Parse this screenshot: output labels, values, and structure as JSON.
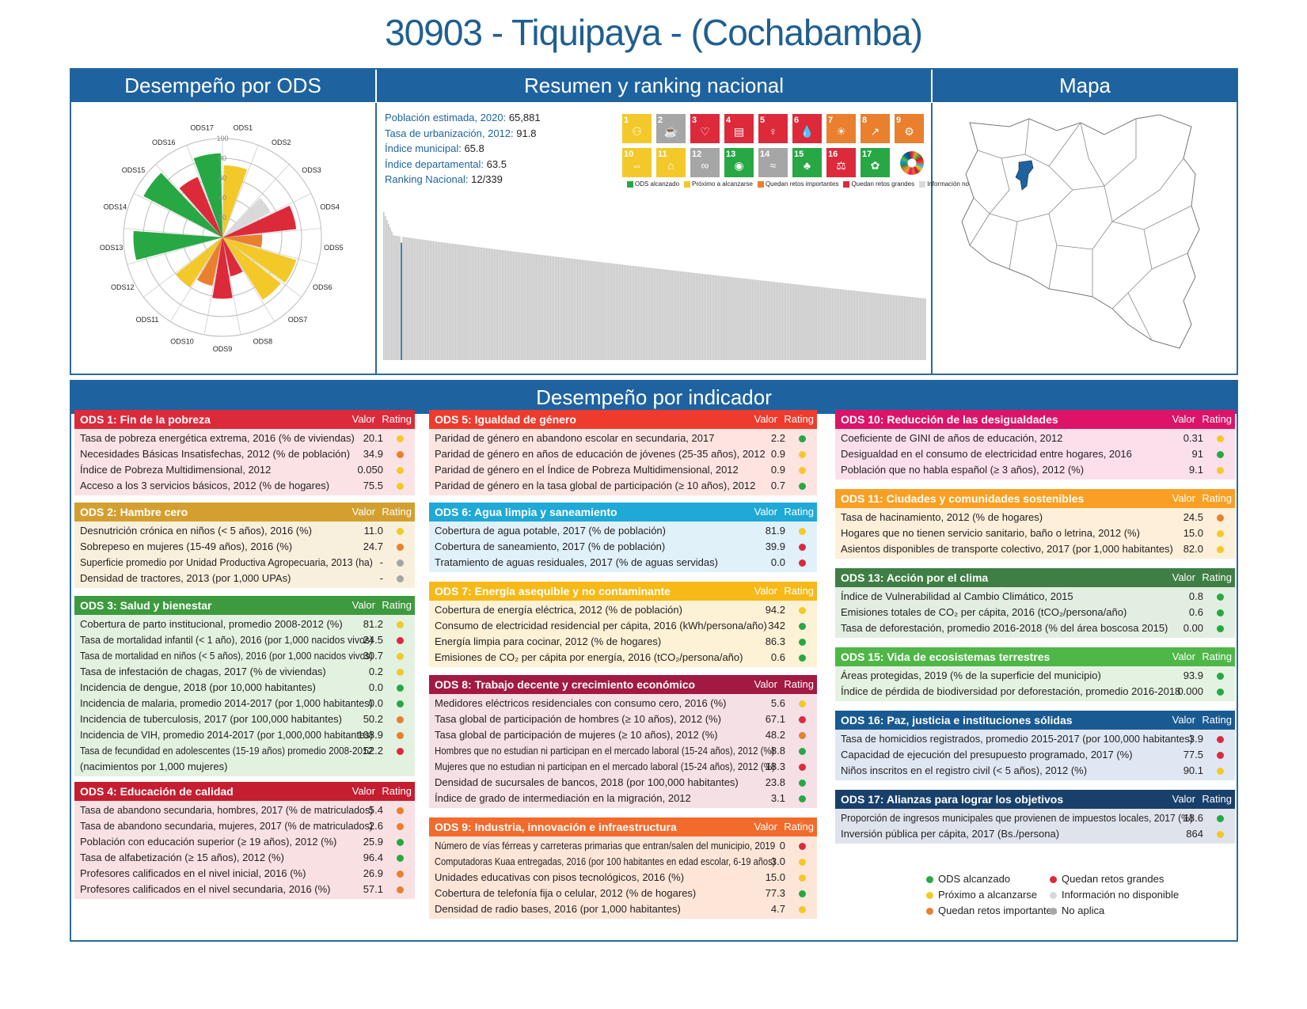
{
  "title": "30903 - Tiquipaya - (Cochabamba)",
  "headers": {
    "ods": "Desempeño por ODS",
    "resumen": "Resumen y ranking nacional",
    "mapa": "Mapa",
    "indicador": "Desempeño por indicador"
  },
  "summary": [
    {
      "label": "Población estimada, 2020:",
      "value": "65,881"
    },
    {
      "label": "Tasa de urbanización, 2012:",
      "value": "91.8"
    },
    {
      "label": "Índice municipal:",
      "value": "65.8"
    },
    {
      "label": "Índice departamental:",
      "value": "63.5"
    },
    {
      "label": "Ranking Nacional:",
      "value": "12/339"
    }
  ],
  "colors": {
    "green": "#27a844",
    "yellow": "#f3c92a",
    "orange": "#ea7f2d",
    "red": "#dc2a3b",
    "lightgray": "#d9d9d9",
    "gray": "#a6a6a6",
    "blue": "#1e63a0"
  },
  "sdg_tiles": [
    {
      "n": "1",
      "color": "#e5243b"
    },
    {
      "n": "2",
      "color": "#dda63a"
    },
    {
      "n": "3",
      "color": "#4c9f38"
    },
    {
      "n": "4",
      "color": "#c5192d"
    },
    {
      "n": "5",
      "color": "#ff3a21"
    },
    {
      "n": "6",
      "color": "#26bde2"
    },
    {
      "n": "7",
      "color": "#fcc30b"
    },
    {
      "n": "8",
      "color": "#a21942"
    },
    {
      "n": "9",
      "color": "#fd6925"
    },
    {
      "n": "10",
      "color": "#dd1367"
    },
    {
      "n": "11",
      "color": "#fd9d24"
    },
    {
      "n": "12",
      "color": "#bf8b2e"
    },
    {
      "n": "13",
      "color": "#3f7e44"
    },
    {
      "n": "14",
      "color": "#0a97d9"
    },
    {
      "n": "15",
      "color": "#56c02b"
    },
    {
      "n": "16",
      "color": "#00689d"
    },
    {
      "n": "17",
      "color": "#19486a"
    }
  ],
  "sdg_tile_status": [
    "yellow",
    "gray",
    "red",
    "red",
    "red",
    "red",
    "orange",
    "orange",
    "orange",
    "yellow",
    "yellow",
    "gray",
    "green",
    "gray",
    "green",
    "red",
    "green"
  ],
  "sdg_legend": [
    {
      "label": "ODS alcanzado",
      "color": "green"
    },
    {
      "label": "Próximo a alcanzarse",
      "color": "yellow"
    },
    {
      "label": "Quedan retos importantes",
      "color": "orange"
    },
    {
      "label": "Quedan retos grandes",
      "color": "red"
    },
    {
      "label": "Información no disponible",
      "color": "lightgray"
    },
    {
      "label": "No aplica",
      "color": "gray"
    }
  ],
  "chart_data": [
    {
      "type": "polar-bar",
      "categories": [
        "ODS1",
        "ODS2",
        "ODS3",
        "ODS4",
        "ODS5",
        "ODS6",
        "ODS7",
        "ODS8",
        "ODS9",
        "ODS10",
        "ODS11",
        "ODS12",
        "ODS13",
        "ODS14",
        "ODS15",
        "ODS16",
        "ODS17"
      ],
      "values": [
        73,
        0,
        55,
        75,
        40,
        78,
        75,
        40,
        62,
        50,
        60,
        0,
        90,
        0,
        90,
        66,
        85
      ],
      "status": [
        "yellow",
        "gray",
        "lightgray",
        "red",
        "orange",
        "yellow",
        "yellow",
        "red",
        "red",
        "orange",
        "yellow",
        "gray",
        "green",
        "gray",
        "green",
        "red",
        "green"
      ],
      "radial_ticks": [
        "20",
        "40",
        "60",
        "80",
        "100"
      ],
      "range": [
        0,
        100
      ]
    },
    {
      "type": "bar",
      "title": "",
      "count": 339,
      "highlight_rank": 12,
      "highlight_value": 65.8,
      "range": [
        0,
        100
      ],
      "values_desc_first": 78,
      "values_desc_last": 38
    }
  ],
  "boxes": [
    {
      "id": "ods1",
      "title": "ODS 1: Fin de la pobreza",
      "color": "#dc2a3b",
      "bg": "#fbe3e5",
      "rows": [
        {
          "label": "Tasa de pobreza energética extrema, 2016 (% de viviendas)",
          "value": "20.1",
          "rating": "yellow"
        },
        {
          "label": "Necesidades Básicas Insatisfechas, 2012 (% de población)",
          "value": "34.9",
          "rating": "orange"
        },
        {
          "label": "Índice de Pobreza Multidimensional, 2012",
          "value": "0.050",
          "rating": "yellow"
        },
        {
          "label": "Acceso a los 3 servicios básicos, 2012 (% de hogares)",
          "value": "75.5",
          "rating": "yellow"
        }
      ]
    },
    {
      "id": "ods2",
      "title": "ODS 2: Hambre cero",
      "color": "#d3a030",
      "bg": "#f8f0dc",
      "rows": [
        {
          "label": "Desnutrición crónica en niños (< 5 años), 2016 (%)",
          "value": "11.0",
          "rating": "yellow"
        },
        {
          "label": "Sobrepeso en mujeres (15-49 años), 2016 (%)",
          "value": "24.7",
          "rating": "orange"
        },
        {
          "label": "Superficie promedio por Unidad Productiva Agropecuaria, 2013 (ha)",
          "value": "-",
          "rating": "gray"
        },
        {
          "label": "Densidad de tractores, 2013 (por 1,000 UPAs)",
          "value": "-",
          "rating": "gray"
        }
      ]
    },
    {
      "id": "ods3",
      "title": "ODS 3: Salud y bienestar",
      "color": "#3e9a3f",
      "bg": "#e3f1e1",
      "rows": [
        {
          "label": "Cobertura de parto institucional, promedio 2008-2012 (%)",
          "value": "81.2",
          "rating": "yellow"
        },
        {
          "label": "Tasa de mortalidad infantil (< 1 año), 2016 (por 1,000 nacidos vivos)",
          "value": "24.5",
          "rating": "red"
        },
        {
          "label": "Tasa de mortalidad en niños (< 5 años), 2016 (por 1,000 nacidos vivos)",
          "value": "30.7",
          "rating": "yellow"
        },
        {
          "label": "Tasa de infestación de chagas, 2017 (% de viviendas)",
          "value": "0.2",
          "rating": "yellow"
        },
        {
          "label": "Incidencia de dengue, 2018 (por 10,000 habitantes)",
          "value": "0.0",
          "rating": "green"
        },
        {
          "label": "Incidencia de malaria, promedio 2014-2017 (por 1,000 habitantes)",
          "value": "0.0",
          "rating": "green"
        },
        {
          "label": "Incidencia de tuberculosis, 2017 (por 100,000 habitantes)",
          "value": "50.2",
          "rating": "orange"
        },
        {
          "label": "Incidencia de VIH, promedio 2014-2017 (por 1,000,000 habitantes)",
          "value": "108.9",
          "rating": "orange"
        },
        {
          "label": "Tasa de fecundidad en adolescentes (15-19 años) promedio 2008-2012",
          "value": "52.2",
          "rating": "red"
        },
        {
          "label": "(nacimientos por 1,000 mujeres)",
          "value": "",
          "rating": ""
        }
      ]
    },
    {
      "id": "ods4",
      "title": "ODS 4: Educación de calidad",
      "color": "#c41e30",
      "bg": "#f9e1e3",
      "rows": [
        {
          "label": "Tasa de abandono secundaria, hombres, 2017 (% de matriculados)",
          "value": "5.4",
          "rating": "orange"
        },
        {
          "label": "Tasa de abandono secundaria, mujeres, 2017 (% de matriculados)",
          "value": "2.6",
          "rating": "orange"
        },
        {
          "label": "Población con educación superior (≥ 19 años), 2012 (%)",
          "value": "25.9",
          "rating": "green"
        },
        {
          "label": "Tasa de alfabetización (≥ 15 años), 2012 (%)",
          "value": "96.4",
          "rating": "green"
        },
        {
          "label": "Profesores calificados en el nivel inicial, 2016 (%)",
          "value": "26.9",
          "rating": "orange"
        },
        {
          "label": "Profesores calificados en el nivel secundaria, 2016 (%)",
          "value": "57.1",
          "rating": "orange"
        }
      ]
    },
    {
      "id": "ods5",
      "title": "ODS 5: Igualdad de género",
      "color": "#ee3b2d",
      "bg": "#fde4e1",
      "rows": [
        {
          "label": "Paridad de género en abandono escolar en secundaria, 2017",
          "value": "2.2",
          "rating": "green"
        },
        {
          "label": "Paridad de género en años de educación de jóvenes (25-35 años), 2012",
          "value": "0.9",
          "rating": "yellow"
        },
        {
          "label": "Paridad de género en el Índice de Pobreza Multidimensional, 2012",
          "value": "0.9",
          "rating": "yellow"
        },
        {
          "label": "Paridad de género en la tasa global de participación (≥ 10 años), 2012",
          "value": "0.7",
          "rating": "green"
        }
      ]
    },
    {
      "id": "ods6",
      "title": "ODS 6: Agua limpia y saneamiento",
      "color": "#1fa9d6",
      "bg": "#e0f1f9",
      "rows": [
        {
          "label": "Cobertura de agua potable, 2017 (% de población)",
          "value": "81.9",
          "rating": "yellow"
        },
        {
          "label": "Cobertura de saneamiento, 2017 (% de población)",
          "value": "39.9",
          "rating": "red"
        },
        {
          "label": "Tratamiento de aguas residuales, 2017 (% de aguas servidas)",
          "value": "0.0",
          "rating": "red"
        }
      ]
    },
    {
      "id": "ods7",
      "title": "ODS 7: Energía asequible y no contaminante",
      "color": "#f6b918",
      "bg": "#fdf1d6",
      "rows": [
        {
          "label": "Cobertura de energía eléctrica, 2012 (% de población)",
          "value": "94.2",
          "rating": "yellow"
        },
        {
          "label": "Consumo de electricidad residencial per cápita, 2016 (kWh/persona/año)",
          "value": "342",
          "rating": "green"
        },
        {
          "label": "Energía limpia para cocinar, 2012 (% de hogares)",
          "value": "86.3",
          "rating": "green"
        },
        {
          "label": "Emisiones de CO₂ per cápita por energía, 2016 (tCO₂/persona/año)",
          "value": "0.6",
          "rating": "green"
        }
      ]
    },
    {
      "id": "ods8",
      "title": "ODS 8: Trabajo decente y crecimiento económico",
      "color": "#a21942",
      "bg": "#f5e0e6",
      "rows": [
        {
          "label": "Medidores eléctricos residenciales con consumo cero, 2016 (%)",
          "value": "5.6",
          "rating": "yellow"
        },
        {
          "label": "Tasa global de participación de hombres (≥ 10 años), 2012 (%)",
          "value": "67.1",
          "rating": "red"
        },
        {
          "label": "Tasa global de participación de mujeres (≥ 10 años), 2012 (%)",
          "value": "48.2",
          "rating": "orange"
        },
        {
          "label": "Hombres que no estudian ni participan en el mercado laboral (15-24 años), 2012 (%)",
          "value": "8.8",
          "rating": "green"
        },
        {
          "label": "Mujeres que no estudian ni participan en el mercado laboral (15-24 años), 2012 (%)",
          "value": "18.3",
          "rating": "red"
        },
        {
          "label": "Densidad de sucursales de bancos, 2018 (por 100,000 habitantes)",
          "value": "23.8",
          "rating": "green"
        },
        {
          "label": "Índice de grado de intermediación en la migración, 2012",
          "value": "3.1",
          "rating": "green"
        }
      ]
    },
    {
      "id": "ods9",
      "title": "ODS 9: Industria, innovación e infraestructura",
      "color": "#f26a2c",
      "bg": "#fde6d8",
      "rows": [
        {
          "label": "Número de vías férreas y carreteras primarias que entran/salen del municipio, 2019",
          "value": "0",
          "rating": "red"
        },
        {
          "label": "Computadoras Kuaa entregadas, 2016 (por 100 habitantes en edad escolar, 6-19 años)",
          "value": "3.0",
          "rating": "yellow"
        },
        {
          "label": "Unidades educativas con pisos tecnológicos, 2016 (%)",
          "value": "15.0",
          "rating": "yellow"
        },
        {
          "label": "Cobertura de telefonía fija o celular, 2012 (% de hogares)",
          "value": "77.3",
          "rating": "green"
        },
        {
          "label": "Densidad de radio bases, 2016 (por 1,000 habitantes)",
          "value": "4.7",
          "rating": "yellow"
        }
      ]
    },
    {
      "id": "ods10",
      "title": "ODS 10: Reducción de las desigualdades",
      "color": "#dd1367",
      "bg": "#fbe0ec",
      "rows": [
        {
          "label": "Coeficiente de GINI de años de educación, 2012",
          "value": "0.31",
          "rating": "yellow"
        },
        {
          "label": "Desigualdad en el consumo de electricidad entre hogares, 2016",
          "value": "91",
          "rating": "green"
        },
        {
          "label": "Población que no habla español (≥ 3 años), 2012 (%)",
          "value": "9.1",
          "rating": "yellow"
        }
      ]
    },
    {
      "id": "ods11",
      "title": "ODS 11: Ciudades y comunidades sostenibles",
      "color": "#f9a024",
      "bg": "#fdefd9",
      "rows": [
        {
          "label": "Tasa de hacinamiento, 2012 (% de hogares)",
          "value": "24.5",
          "rating": "orange"
        },
        {
          "label": "Hogares que no tienen servicio sanitario, baño o letrina, 2012 (%)",
          "value": "15.0",
          "rating": "yellow"
        },
        {
          "label": "Asientos disponibles de transporte colectivo, 2017 (por 1,000 habitantes)",
          "value": "82.0",
          "rating": "yellow"
        }
      ]
    },
    {
      "id": "ods13",
      "title": "ODS 13: Acción por el clima",
      "color": "#3f7e44",
      "bg": "#e2eee2",
      "rows": [
        {
          "label": "Índice de Vulnerabilidad al Cambio Climático, 2015",
          "value": "0.8",
          "rating": "green"
        },
        {
          "label": "Emisiones totales de CO₂ per cápita, 2016 (tCO₂/persona/año)",
          "value": "0.6",
          "rating": "green"
        },
        {
          "label": "Tasa de deforestación, promedio 2016-2018 (% del área boscosa 2015)",
          "value": "0.00",
          "rating": "green"
        }
      ]
    },
    {
      "id": "ods15",
      "title": "ODS 15: Vida de ecosistemas terrestres",
      "color": "#4fb648",
      "bg": "#e4f3e1",
      "rows": [
        {
          "label": "Áreas protegidas, 2019 (% de la superficie del municipio)",
          "value": "93.9",
          "rating": "green"
        },
        {
          "label": "Índice de pérdida de biodiversidad por deforestación, promedio 2016-2018",
          "value": "0.000",
          "rating": "green"
        }
      ]
    },
    {
      "id": "ods16",
      "title": "ODS 16: Paz, justicia e instituciones sólidas",
      "color": "#1a5a92",
      "bg": "#dfe8f2",
      "rows": [
        {
          "label": "Tasa de homicidios registrados, promedio 2015-2017 (por 100,000 habitantes)",
          "value": "3.9",
          "rating": "red"
        },
        {
          "label": "Capacidad de ejecución del presupuesto programado, 2017 (%)",
          "value": "77.5",
          "rating": "red"
        },
        {
          "label": "Niños inscritos en el registro civil (< 5 años), 2012 (%)",
          "value": "90.1",
          "rating": "yellow"
        }
      ]
    },
    {
      "id": "ods17",
      "title": "ODS 17: Alianzas para lograr los objetivos",
      "color": "#19406a",
      "bg": "#dfe3ec",
      "rows": [
        {
          "label": "Proporción de ingresos municipales que provienen de impuestos locales, 2017 (%)",
          "value": "18.6",
          "rating": "green"
        },
        {
          "label": "Inversión pública per cápita, 2017 (Bs./persona)",
          "value": "864",
          "rating": "yellow"
        }
      ]
    }
  ],
  "box_header_labels": {
    "valor": "Valor",
    "rating": "Rating"
  },
  "legend": [
    {
      "label": "ODS alcanzado",
      "color": "green"
    },
    {
      "label": "Quedan retos grandes",
      "color": "red"
    },
    {
      "label": "Próximo a alcanzarse",
      "color": "yellow"
    },
    {
      "label": "Información no disponible",
      "color": "lightgray"
    },
    {
      "label": "Quedan retos importantes",
      "color": "orange"
    },
    {
      "label": "No aplica",
      "color": "gray"
    }
  ]
}
